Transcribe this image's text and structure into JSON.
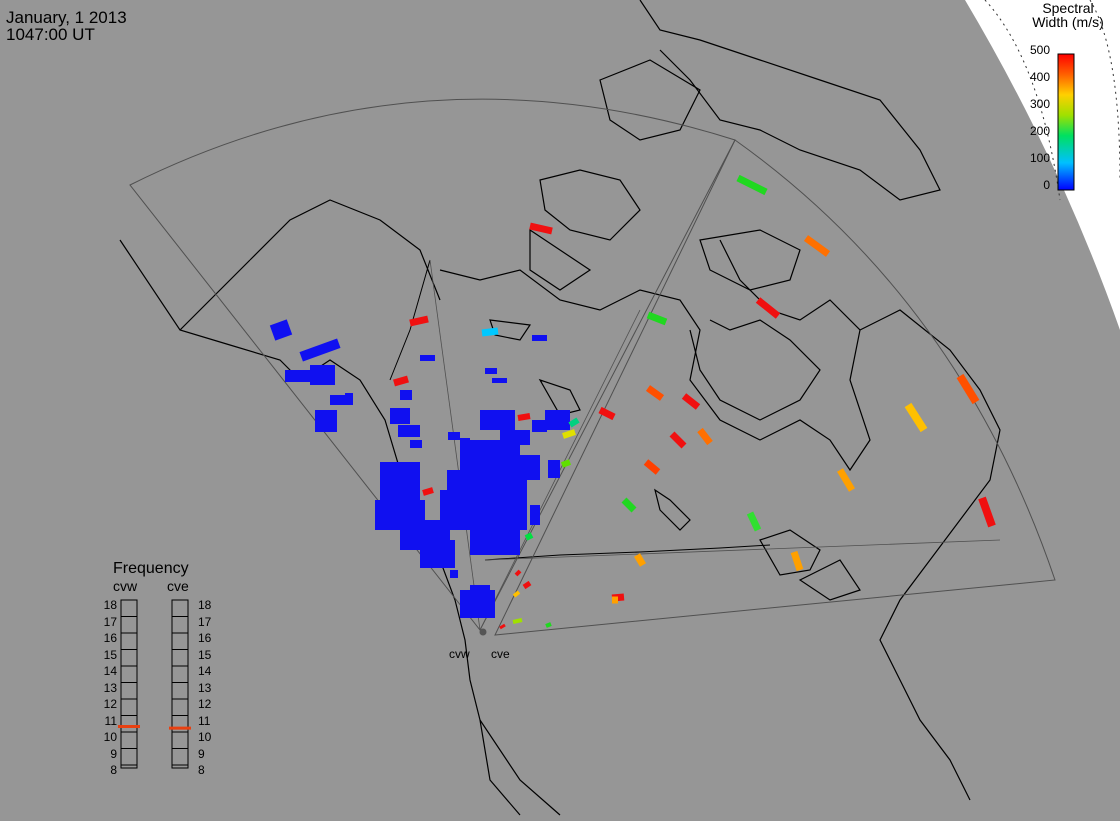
{
  "header": {
    "date": "January, 1 2013",
    "time": "1047:00 UT"
  },
  "colorbar": {
    "title_line1": "Spectral",
    "title_line2": "Width (m/s)",
    "ticks": [
      "500",
      "400",
      "300",
      "200",
      "100",
      "0"
    ],
    "min": 0,
    "max": 500
  },
  "frequency_panel": {
    "title": "Frequency",
    "left_label": "cvw",
    "right_label": "cve",
    "levels": [
      "18",
      "17",
      "16",
      "15",
      "14",
      "13",
      "12",
      "11",
      "10",
      "9",
      "8"
    ],
    "cvw_marker_value": 10.7,
    "cve_marker_value": 10.6,
    "marker_color": "#e84010"
  },
  "radars": {
    "west_label": "cvw",
    "east_label": "cve"
  },
  "colors": {
    "background": "#969696",
    "land_line": "#000000",
    "fov_line": "#505050",
    "night_boundary": "#ffffff"
  }
}
